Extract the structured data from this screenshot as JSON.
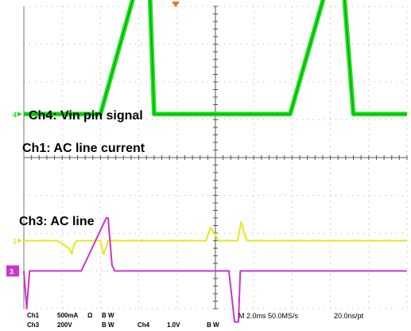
{
  "chart_data": {
    "type": "line",
    "title": "",
    "xlabel": "",
    "ylabel": "",
    "time_unit": "ms",
    "x_divisions": 10,
    "y_divisions": 8,
    "grid": true,
    "series": [
      {
        "name": "Ch4: Vin pin signal",
        "color": "#18e418",
        "level_div": -0.9,
        "band_div": 0.12,
        "points": [
          [
            0,
            2.05
          ],
          [
            5.5,
            2.05
          ],
          [
            8,
            2.05
          ],
          [
            12.5,
            6.1
          ],
          [
            13.0,
            6.3
          ],
          [
            13.6,
            2.05
          ],
          [
            17.2,
            2.05
          ],
          [
            27.8,
            2.05
          ],
          [
            32.4,
            6.1
          ],
          [
            33.1,
            6.3
          ],
          [
            34.4,
            2.05
          ],
          [
            40,
            2.05
          ]
        ]
      },
      {
        "name": "Ch1: AC line current",
        "color": "#e6e61e",
        "level_div": -2.2,
        "points": [
          [
            0,
            0
          ],
          [
            3.5,
            0
          ],
          [
            4.7,
            -0.2
          ],
          [
            5.0,
            -0.35
          ],
          [
            5.25,
            -0.1
          ],
          [
            5.5,
            0
          ],
          [
            8.0,
            0
          ],
          [
            8.3,
            -0.35
          ],
          [
            8.5,
            -0.25
          ],
          [
            8.8,
            0
          ],
          [
            18.0,
            0
          ],
          [
            19.0,
            0
          ],
          [
            19.5,
            0.35
          ],
          [
            19.9,
            0.2
          ],
          [
            20.3,
            0
          ],
          [
            22.3,
            0
          ],
          [
            22.7,
            0.5
          ],
          [
            23.0,
            0.2
          ],
          [
            23.3,
            0
          ],
          [
            40,
            0
          ]
        ]
      },
      {
        "name": "Ch3: AC line",
        "color": "#cc33cc",
        "level_div": -3.0,
        "points": [
          [
            0,
            0
          ],
          [
            0.3,
            -1.0
          ],
          [
            0.6,
            0
          ],
          [
            6.0,
            0
          ],
          [
            8.6,
            1.4
          ],
          [
            8.8,
            1.4
          ],
          [
            9.2,
            0.15
          ],
          [
            9.5,
            0
          ],
          [
            21.4,
            0
          ],
          [
            22.0,
            -1.35
          ],
          [
            22.4,
            -1.35
          ],
          [
            22.6,
            0
          ],
          [
            27,
            0
          ],
          [
            40,
            0
          ]
        ]
      }
    ],
    "timebase_label": "M 2.0ms 50.0MS/s",
    "record_label": "20.0ns/pt"
  },
  "labels": {
    "ch4": "Ch4: Vin pin signal",
    "ch1": "Ch1: AC line current",
    "ch3": "Ch3: AC line"
  },
  "status": {
    "ch1_name": "Ch1",
    "ch1_scale": "500mA",
    "ch1_omega": "Ω",
    "ch1_bw": "B W",
    "ch3_name": "Ch3",
    "ch3_scale": "200V",
    "ch3_bw": "B W",
    "ch4_name": "Ch4",
    "ch4_scale": "1.0V",
    "ch4_bw": "B W",
    "timebase": "M 2.0ms 50.0MS/s",
    "record": "20.0ns/pt"
  },
  "markers": {
    "ch4": "4",
    "ch1": "1",
    "ch3": "3"
  }
}
